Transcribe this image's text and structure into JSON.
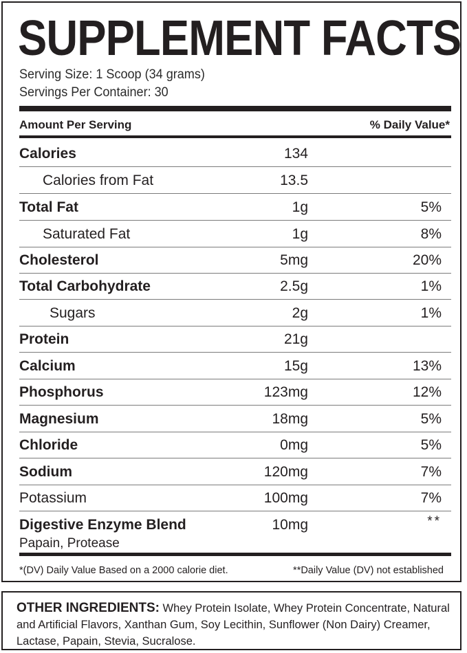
{
  "title": "SUPPLEMENT FACTS",
  "serving": {
    "size": "Serving Size: 1 Scoop (34 grams)",
    "per_container": "Servings Per Container: 30"
  },
  "header": {
    "amount_per_serving": "Amount Per Serving",
    "daily_value": "% Daily Value*"
  },
  "nutrients": [
    {
      "name": "Calories",
      "amount": "134",
      "dv": ""
    },
    {
      "name": "Calories from Fat",
      "amount": "13.5",
      "dv": ""
    },
    {
      "name": "Total Fat",
      "amount": "1g",
      "dv": "5%"
    },
    {
      "name": "Saturated Fat",
      "amount": "1g",
      "dv": "8%"
    },
    {
      "name": "Cholesterol",
      "amount": "5mg",
      "dv": "20%"
    },
    {
      "name": "Total Carbohydrate",
      "amount": "2.5g",
      "dv": "1%"
    },
    {
      "name": "Sugars",
      "amount": "2g",
      "dv": "1%"
    },
    {
      "name": "Protein",
      "amount": "21g",
      "dv": ""
    },
    {
      "name": "Calcium",
      "amount": "15g",
      "dv": "13%"
    },
    {
      "name": "Phosphorus",
      "amount": "123mg",
      "dv": "12%"
    },
    {
      "name": "Magnesium",
      "amount": "18mg",
      "dv": "5%"
    },
    {
      "name": "Chloride",
      "amount": "0mg",
      "dv": "5%"
    },
    {
      "name": "Sodium",
      "amount": "120mg",
      "dv": "7%"
    },
    {
      "name": "Potassium",
      "amount": "100mg",
      "dv": "7%"
    }
  ],
  "enzyme_blend": {
    "name": "Digestive Enzyme Blend",
    "components": "Papain, Protease",
    "amount": "10mg",
    "dv": "**"
  },
  "footnotes": {
    "dv_basis": "*(DV) Daily Value Based on a 2000 calorie diet.",
    "not_established": "**Daily Value (DV) not established"
  },
  "other_ingredients": {
    "label": "OTHER INGREDIENTS:",
    "text": "Whey Protein Isolate, Whey Protein Concentrate, Natural and Artificial Flavors, Xanthan Gum, Soy Lecithin, Sunflower (Non Dairy) Creamer,  Lactase, Papain, Stevia, Sucralose."
  },
  "colors": {
    "ink": "#231f20",
    "row_divider": "#7a7a7a",
    "background": "#ffffff"
  }
}
